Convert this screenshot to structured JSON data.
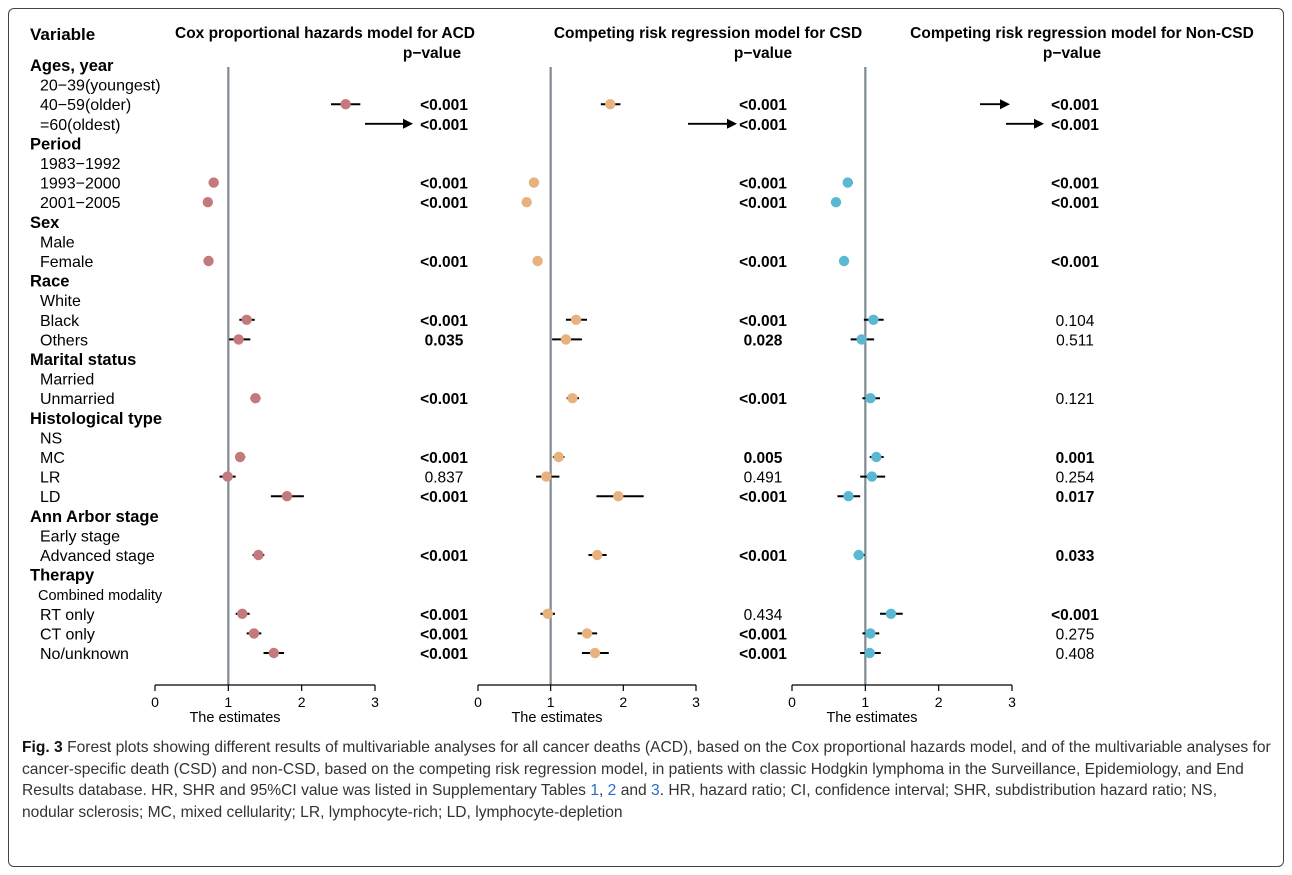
{
  "chart_data": {
    "type": "forest",
    "variable_header": "Variable",
    "xlabel": "The estimates",
    "xlim": [
      0,
      3
    ],
    "xticks": [
      "0",
      "1",
      "2",
      "3"
    ],
    "reference_line": 1,
    "rows": [
      {
        "label": "Ages, year",
        "kind": "group"
      },
      {
        "label": "20−39(youngest)",
        "kind": "level"
      },
      {
        "label": "40−59(older)",
        "kind": "level"
      },
      {
        "label": "=60(oldest)",
        "kind": "level"
      },
      {
        "label": "Period",
        "kind": "group"
      },
      {
        "label": "1983−1992",
        "kind": "level"
      },
      {
        "label": "1993−2000",
        "kind": "level"
      },
      {
        "label": "2001−2005",
        "kind": "level"
      },
      {
        "label": "Sex",
        "kind": "group"
      },
      {
        "label": "Male",
        "kind": "level"
      },
      {
        "label": "Female",
        "kind": "level"
      },
      {
        "label": "Race",
        "kind": "group"
      },
      {
        "label": "White",
        "kind": "level"
      },
      {
        "label": "Black",
        "kind": "level"
      },
      {
        "label": "Others",
        "kind": "level"
      },
      {
        "label": "Marital status",
        "kind": "group"
      },
      {
        "label": "Married",
        "kind": "level"
      },
      {
        "label": "Unmarried",
        "kind": "level"
      },
      {
        "label": "Histological type",
        "kind": "group"
      },
      {
        "label": "NS",
        "kind": "level"
      },
      {
        "label": "MC",
        "kind": "level"
      },
      {
        "label": "LR",
        "kind": "level"
      },
      {
        "label": "LD",
        "kind": "level"
      },
      {
        "label": "Ann Arbor stage",
        "kind": "group"
      },
      {
        "label": "Early stage",
        "kind": "level"
      },
      {
        "label": "Advanced stage",
        "kind": "level"
      },
      {
        "label": "Therapy",
        "kind": "group"
      },
      {
        "label": "Combined modality",
        "kind": "level",
        "small": true
      },
      {
        "label": "RT only",
        "kind": "level"
      },
      {
        "label": "CT only",
        "kind": "level"
      },
      {
        "label": "No/unknown",
        "kind": "level"
      }
    ],
    "panels": [
      {
        "title": "Cox proportional hazards model for ACD",
        "pvalue_header": "p−value",
        "color": "#c47a7d",
        "estimates": [
          {
            "row": 2,
            "est": 2.6,
            "lo": 2.4,
            "hi": 2.8,
            "p": "<0.001",
            "bold": true
          },
          {
            "row": 3,
            "arrow": true,
            "p": "<0.001",
            "bold": true
          },
          {
            "row": 6,
            "est": 0.8,
            "lo": 0.77,
            "hi": 0.84,
            "p": "<0.001",
            "bold": true
          },
          {
            "row": 7,
            "est": 0.72,
            "lo": 0.69,
            "hi": 0.76,
            "p": "<0.001",
            "bold": true
          },
          {
            "row": 10,
            "est": 0.73,
            "lo": 0.71,
            "hi": 0.76,
            "p": "<0.001",
            "bold": true
          },
          {
            "row": 13,
            "est": 1.25,
            "lo": 1.15,
            "hi": 1.36,
            "p": "<0.001",
            "bold": true
          },
          {
            "row": 14,
            "est": 1.14,
            "lo": 1.01,
            "hi": 1.3,
            "p": "0.035",
            "bold": true
          },
          {
            "row": 17,
            "est": 1.37,
            "lo": 1.3,
            "hi": 1.44,
            "p": "<0.001",
            "bold": true
          },
          {
            "row": 20,
            "est": 1.16,
            "lo": 1.1,
            "hi": 1.23,
            "p": "<0.001",
            "bold": true
          },
          {
            "row": 21,
            "est": 0.99,
            "lo": 0.88,
            "hi": 1.1,
            "p": "0.837",
            "bold": false
          },
          {
            "row": 22,
            "est": 1.8,
            "lo": 1.58,
            "hi": 2.03,
            "p": "<0.001",
            "bold": true
          },
          {
            "row": 25,
            "est": 1.41,
            "lo": 1.33,
            "hi": 1.49,
            "p": "<0.001",
            "bold": true
          },
          {
            "row": 28,
            "est": 1.19,
            "lo": 1.1,
            "hi": 1.29,
            "p": "<0.001",
            "bold": true
          },
          {
            "row": 29,
            "est": 1.35,
            "lo": 1.25,
            "hi": 1.45,
            "p": "<0.001",
            "bold": true
          },
          {
            "row": 30,
            "est": 1.62,
            "lo": 1.48,
            "hi": 1.76,
            "p": "<0.001",
            "bold": true
          }
        ]
      },
      {
        "title": "Competing risk regression model for CSD",
        "pvalue_header": "p−value",
        "color": "#e8b27e",
        "estimates": [
          {
            "row": 2,
            "est": 1.82,
            "lo": 1.69,
            "hi": 1.96,
            "p": "<0.001",
            "bold": true
          },
          {
            "row": 3,
            "arrow": true,
            "p": "<0.001",
            "bold": true
          },
          {
            "row": 6,
            "est": 0.77,
            "lo": 0.72,
            "hi": 0.83,
            "p": "<0.001",
            "bold": true
          },
          {
            "row": 7,
            "est": 0.67,
            "lo": 0.62,
            "hi": 0.72,
            "p": "<0.001",
            "bold": true
          },
          {
            "row": 10,
            "est": 0.82,
            "lo": 0.78,
            "hi": 0.86,
            "p": "<0.001",
            "bold": true
          },
          {
            "row": 13,
            "est": 1.35,
            "lo": 1.21,
            "hi": 1.5,
            "p": "<0.001",
            "bold": true
          },
          {
            "row": 14,
            "est": 1.21,
            "lo": 1.02,
            "hi": 1.43,
            "p": "0.028",
            "bold": true
          },
          {
            "row": 17,
            "est": 1.3,
            "lo": 1.22,
            "hi": 1.39,
            "p": "<0.001",
            "bold": true
          },
          {
            "row": 20,
            "est": 1.11,
            "lo": 1.03,
            "hi": 1.19,
            "p": "0.005",
            "bold": true
          },
          {
            "row": 21,
            "est": 0.94,
            "lo": 0.8,
            "hi": 1.12,
            "p": "0.491",
            "bold": false
          },
          {
            "row": 22,
            "est": 1.93,
            "lo": 1.63,
            "hi": 2.28,
            "p": "<0.001",
            "bold": true
          },
          {
            "row": 25,
            "est": 1.64,
            "lo": 1.52,
            "hi": 1.77,
            "p": "<0.001",
            "bold": true
          },
          {
            "row": 28,
            "est": 0.96,
            "lo": 0.86,
            "hi": 1.06,
            "p": "0.434",
            "bold": false
          },
          {
            "row": 29,
            "est": 1.5,
            "lo": 1.37,
            "hi": 1.64,
            "p": "<0.001",
            "bold": true
          },
          {
            "row": 30,
            "est": 1.61,
            "lo": 1.43,
            "hi": 1.8,
            "p": "<0.001",
            "bold": true
          }
        ]
      },
      {
        "title": "Competing risk regression model for Non-CSD",
        "pvalue_header": "p−value",
        "color": "#5bb8d3",
        "estimates": [
          {
            "row": 2,
            "arrow": true,
            "p": "<0.001",
            "bold": true
          },
          {
            "row": 3,
            "arrow": true,
            "p": "<0.001",
            "bold": true
          },
          {
            "row": 6,
            "est": 0.76,
            "lo": 0.7,
            "hi": 0.83,
            "p": "<0.001",
            "bold": true
          },
          {
            "row": 7,
            "est": 0.6,
            "lo": 0.54,
            "hi": 0.66,
            "p": "<0.001",
            "bold": true
          },
          {
            "row": 10,
            "est": 0.71,
            "lo": 0.66,
            "hi": 0.76,
            "p": "<0.001",
            "bold": true
          },
          {
            "row": 13,
            "est": 1.11,
            "lo": 0.98,
            "hi": 1.25,
            "p": "0.104",
            "bold": false
          },
          {
            "row": 14,
            "est": 0.95,
            "lo": 0.8,
            "hi": 1.12,
            "p": "0.511",
            "bold": false
          },
          {
            "row": 17,
            "est": 1.07,
            "lo": 0.96,
            "hi": 1.2,
            "p": "0.121",
            "bold": false
          },
          {
            "row": 20,
            "est": 1.15,
            "lo": 1.06,
            "hi": 1.25,
            "p": "0.001",
            "bold": true
          },
          {
            "row": 21,
            "est": 1.09,
            "lo": 0.93,
            "hi": 1.27,
            "p": "0.254",
            "bold": false
          },
          {
            "row": 22,
            "est": 0.77,
            "lo": 0.62,
            "hi": 0.93,
            "p": "0.017",
            "bold": true
          },
          {
            "row": 25,
            "est": 0.91,
            "lo": 0.84,
            "hi": 0.99,
            "p": "0.033",
            "bold": true
          },
          {
            "row": 28,
            "est": 1.35,
            "lo": 1.2,
            "hi": 1.51,
            "p": "<0.001",
            "bold": true
          },
          {
            "row": 29,
            "est": 1.07,
            "lo": 0.96,
            "hi": 1.19,
            "p": "0.275",
            "bold": false
          },
          {
            "row": 30,
            "est": 1.06,
            "lo": 0.93,
            "hi": 1.21,
            "p": "0.408",
            "bold": false
          }
        ]
      }
    ]
  },
  "caption": {
    "label": "Fig. 3",
    "text_1": " Forest plots showing different results of multivariable analyses for all cancer deaths (ACD), based on the Cox proportional hazards model, and of the multivariable analyses for cancer-specific death (CSD) and non-CSD, based on the competing risk regression model, in patients with classic Hodgkin lymphoma in the Surveillance, Epidemiology, and End Results database. HR, SHR and 95%CI value was listed in Supplementary Tables ",
    "ref_1": "1",
    "text_2": ", ",
    "ref_2": "2",
    "text_3": " and ",
    "ref_3": "3",
    "text_4": ". HR, hazard ratio; CI, confidence interval; SHR, subdistribution hazard ratio; NS, nodular sclerosis; MC, mixed cellularity; LR, lymphocyte-rich; LD, lymphocyte-depletion"
  }
}
